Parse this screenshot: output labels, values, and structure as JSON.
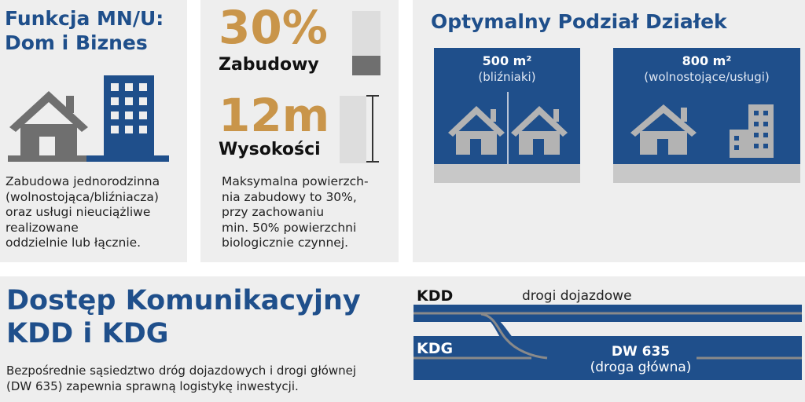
{
  "function_panel": {
    "title_line1": "Funkcja MN/U:",
    "title_line2": "Dom i Biznes",
    "desc_lines": [
      "Zabudowa jednorodzinna",
      "(wolnostojąca/bliźniacza)",
      "oraz usługi nieuciążliwe",
      "realizowane",
      "oddzielnie lub łącznie."
    ]
  },
  "params_panel": {
    "coverage_value": "30%",
    "coverage_label": "Zabudowy",
    "height_value": "12m",
    "height_label": "Wysokości",
    "coverage_fill_fraction": 0.3,
    "desc_lines": [
      "Maksymalna powierzch-",
      "nia zabudowy to 30%,",
      "przy zachowaniu",
      "min. 50% powierzchni",
      "biologicznie czynnej."
    ]
  },
  "plots_panel": {
    "title": "Optymalny Podział Działek",
    "plots": [
      {
        "area": "500 m²",
        "type": "(bliźniaki)"
      },
      {
        "area": "800 m²",
        "type": "(wolnostojące/usługi)"
      }
    ]
  },
  "access_panel": {
    "title_line1": "Dostęp Komunikacyjny",
    "title_line2": "KDD i KDG",
    "desc_lines": [
      "Bezpośrednie sąsiedztwo dróg dojazdowych i drogi głównej",
      "(DW 635) zapewnia sprawną logistykę inwestycji."
    ],
    "kdd_label": "KDD",
    "kdd_desc": "drogi dojazdowe",
    "kdg_label": "KDG",
    "main_road_name": "DW 635",
    "main_road_desc": "(droga główna)"
  },
  "colors": {
    "brand_blue": "#1f4f8b",
    "accent_gold": "#c9954a",
    "icon_gray": "#6f6f6f"
  }
}
